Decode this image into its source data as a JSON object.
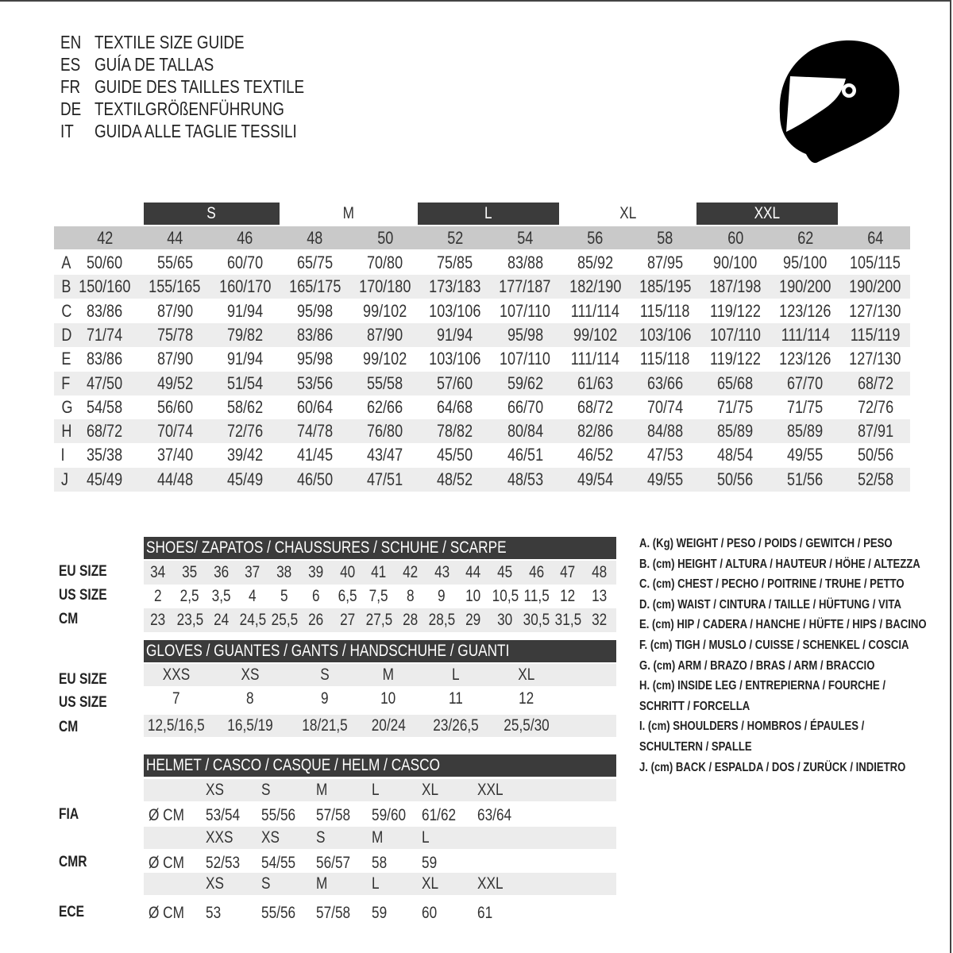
{
  "titles": [
    {
      "code": "EN",
      "text": "TEXTILE SIZE GUIDE"
    },
    {
      "code": "ES",
      "text": "GUÍA DE TALLAS"
    },
    {
      "code": "FR",
      "text": "GUIDE DES TAILLES TEXTILE"
    },
    {
      "code": "DE",
      "text": "TEXTILGRÖßENFÜHRUNG"
    },
    {
      "code": "IT",
      "text": "GUIDA ALLE TAGLIE TESSILI"
    }
  ],
  "logo_icon": "helmet-icon",
  "colors": {
    "dark_bar": "#3b3b3b",
    "header_gray": "#c9c9c9",
    "row_alt": "#ededed"
  },
  "textile": {
    "size_bands": [
      {
        "label": "S",
        "style": "dark"
      },
      {
        "label": "M",
        "style": "light"
      },
      {
        "label": "L",
        "style": "dark"
      },
      {
        "label": "XL",
        "style": "light"
      },
      {
        "label": "XXL",
        "style": "dark"
      }
    ],
    "eu_sizes": [
      "42",
      "44",
      "46",
      "48",
      "50",
      "52",
      "54",
      "56",
      "58",
      "60",
      "62",
      "64"
    ],
    "rows": [
      {
        "label": "A",
        "values": [
          "50/60",
          "55/65",
          "60/70",
          "65/75",
          "70/80",
          "75/85",
          "83/88",
          "85/92",
          "87/95",
          "90/100",
          "95/100",
          "105/115"
        ]
      },
      {
        "label": "B",
        "values": [
          "150/160",
          "155/165",
          "160/170",
          "165/175",
          "170/180",
          "173/183",
          "177/187",
          "182/190",
          "185/195",
          "187/198",
          "190/200",
          "190/200"
        ]
      },
      {
        "label": "C",
        "values": [
          "83/86",
          "87/90",
          "91/94",
          "95/98",
          "99/102",
          "103/106",
          "107/110",
          "111/114",
          "115/118",
          "119/122",
          "123/126",
          "127/130"
        ]
      },
      {
        "label": "D",
        "values": [
          "71/74",
          "75/78",
          "79/82",
          "83/86",
          "87/90",
          "91/94",
          "95/98",
          "99/102",
          "103/106",
          "107/110",
          "111/114",
          "115/119"
        ]
      },
      {
        "label": "E",
        "values": [
          "83/86",
          "87/90",
          "91/94",
          "95/98",
          "99/102",
          "103/106",
          "107/110",
          "111/114",
          "115/118",
          "119/122",
          "123/126",
          "127/130"
        ]
      },
      {
        "label": "F",
        "values": [
          "47/50",
          "49/52",
          "51/54",
          "53/56",
          "55/58",
          "57/60",
          "59/62",
          "61/63",
          "63/66",
          "65/68",
          "67/70",
          "68/72"
        ]
      },
      {
        "label": "G",
        "values": [
          "54/58",
          "56/60",
          "58/62",
          "60/64",
          "62/66",
          "64/68",
          "66/70",
          "68/72",
          "70/74",
          "71/75",
          "71/75",
          "72/76"
        ]
      },
      {
        "label": "H",
        "values": [
          "68/72",
          "70/74",
          "72/76",
          "74/78",
          "76/80",
          "78/82",
          "80/84",
          "82/86",
          "84/88",
          "85/89",
          "85/89",
          "87/91"
        ]
      },
      {
        "label": "I",
        "values": [
          "35/38",
          "37/40",
          "39/42",
          "41/45",
          "43/47",
          "45/50",
          "46/51",
          "46/52",
          "47/53",
          "48/54",
          "49/55",
          "50/56"
        ]
      },
      {
        "label": "J",
        "values": [
          "45/49",
          "44/48",
          "45/49",
          "46/50",
          "47/51",
          "48/52",
          "48/53",
          "49/54",
          "49/55",
          "50/56",
          "51/56",
          "52/58"
        ]
      }
    ]
  },
  "shoes": {
    "title": "SHOES/ ZAPATOS / CHAUSSURES / SCHUHE / SCARPE",
    "rows": [
      {
        "label": "EU SIZE",
        "values": [
          "34",
          "35",
          "36",
          "37",
          "38",
          "39",
          "40",
          "41",
          "42",
          "43",
          "44",
          "45",
          "46",
          "47",
          "48"
        ]
      },
      {
        "label": "US SIZE",
        "values": [
          "2",
          "2,5",
          "3,5",
          "4",
          "5",
          "6",
          "6,5",
          "7,5",
          "8",
          "9",
          "10",
          "10,5",
          "11,5",
          "12",
          "13"
        ]
      },
      {
        "label": "CM",
        "values": [
          "23",
          "23,5",
          "24",
          "24,5",
          "25,5",
          "26",
          "27",
          "27,5",
          "28",
          "28,5",
          "29",
          "30",
          "30,5",
          "31,5",
          "32"
        ]
      }
    ]
  },
  "gloves": {
    "title": "GLOVES / GUANTES / GANTS / HANDSCHUHE / GUANTI",
    "rows": [
      {
        "label": "EU SIZE",
        "values": [
          "XXS",
          "XS",
          "S",
          "M",
          "L",
          "XL"
        ]
      },
      {
        "label": "US SIZE",
        "values": [
          "7",
          "8",
          "9",
          "10",
          "11",
          "12"
        ]
      },
      {
        "label": "CM",
        "values": [
          "12,5/16,5",
          "16,5/19",
          "18/21,5",
          "20/24",
          "23/26,5",
          "25,5/30"
        ]
      }
    ]
  },
  "helmet": {
    "title": "HELMET / CASCO / CASQUE / HELM / CASCO",
    "unit": "Ø CM",
    "standards": [
      {
        "label": "FIA",
        "sizes": [
          "XS",
          "S",
          "M",
          "L",
          "XL",
          "XXL"
        ],
        "values": [
          "53/54",
          "55/56",
          "57/58",
          "59/60",
          "61/62",
          "63/64"
        ]
      },
      {
        "label": "CMR",
        "sizes": [
          "XXS",
          "XS",
          "S",
          "M",
          "L"
        ],
        "values": [
          "52/53",
          "54/55",
          "56/57",
          "58",
          "59"
        ]
      },
      {
        "label": "ECE",
        "sizes": [
          "XS",
          "S",
          "M",
          "L",
          "XL",
          "XXL"
        ],
        "values": [
          "53",
          "55/56",
          "57/58",
          "59",
          "60",
          "61"
        ]
      }
    ]
  },
  "legend": [
    "A. (Kg) WEIGHT / PESO / POIDS / GEWITCH / PESO",
    "B. (cm) HEIGHT / ALTURA / HAUTEUR / HÖHE / ALTEZZA",
    "C. (cm) CHEST / PECHO / POITRINE / TRUHE / PETTO",
    "D. (cm) WAIST / CINTURA / TAILLE / HÜFTUNG / VITA",
    "E. (cm) HIP / CADERA / HANCHE / HÜFTE / HIPS /  BACINO",
    "F.  (cm) TIGH / MUSLO / CUISSE / SCHENKEL / COSCIA",
    "G. (cm) ARM  / BRAZO / BRAS / ARM / BRACCIO",
    "H. (cm) INSIDE LEG / ENTREPIERNA / FOURCHE /",
    "SCHRITT / FORCELLA",
    "I.  (cm) SHOULDERS / HOMBROS / ÉPAULES /",
    "SCHULTERN / SPALLE",
    "J. (cm) BACK / ESPALDA / DOS / ZURÜCK / INDIETRO"
  ]
}
